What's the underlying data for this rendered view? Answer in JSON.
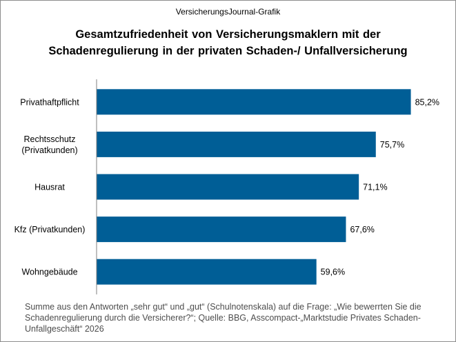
{
  "header": {
    "source": "VersicherungsJournal-Grafik",
    "title": "Gesamtzufriedenheit von Versicherungsmaklern mit der Schadenregulierung in der privaten Schaden-/ Unfallversicherung"
  },
  "footnote": "Summe aus den Antworten „sehr gut“ und „gut“ (Schulnotenskala) auf die Frage: „Wie bewerrten Sie die Schadenregulierung durch die Versicherer?“; Quelle: BBG, Asscompact-„Marktstudie Privates Schaden-Unfallgeschäft“ 2026",
  "chart_data": {
    "type": "bar",
    "orientation": "horizontal",
    "categories": [
      [
        "Privathaftpflicht"
      ],
      [
        "Rechtsschutz",
        "(Privatkunden)"
      ],
      [
        "Hausrat"
      ],
      [
        "Kfz (Privatkunden)"
      ],
      [
        "Wohngebäude"
      ]
    ],
    "values": [
      85.2,
      75.7,
      71.1,
      67.6,
      59.6
    ],
    "value_labels": [
      "85,2%",
      "75,7%",
      "71,1%",
      "67,6%",
      "59,6%"
    ],
    "xlim": [
      0,
      100
    ],
    "bar_color": "#005e96",
    "grid": false,
    "legend": "none"
  }
}
